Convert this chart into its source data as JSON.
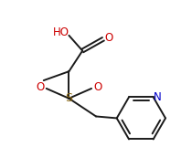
{
  "bg_color": "#ffffff",
  "line_color": "#1a1a1a",
  "atom_colors": {
    "O": "#cc0000",
    "N": "#0000cc",
    "S": "#8B6914",
    "C": "#1a1a1a"
  },
  "figsize": [
    2.1,
    1.84
  ],
  "dpi": 100
}
